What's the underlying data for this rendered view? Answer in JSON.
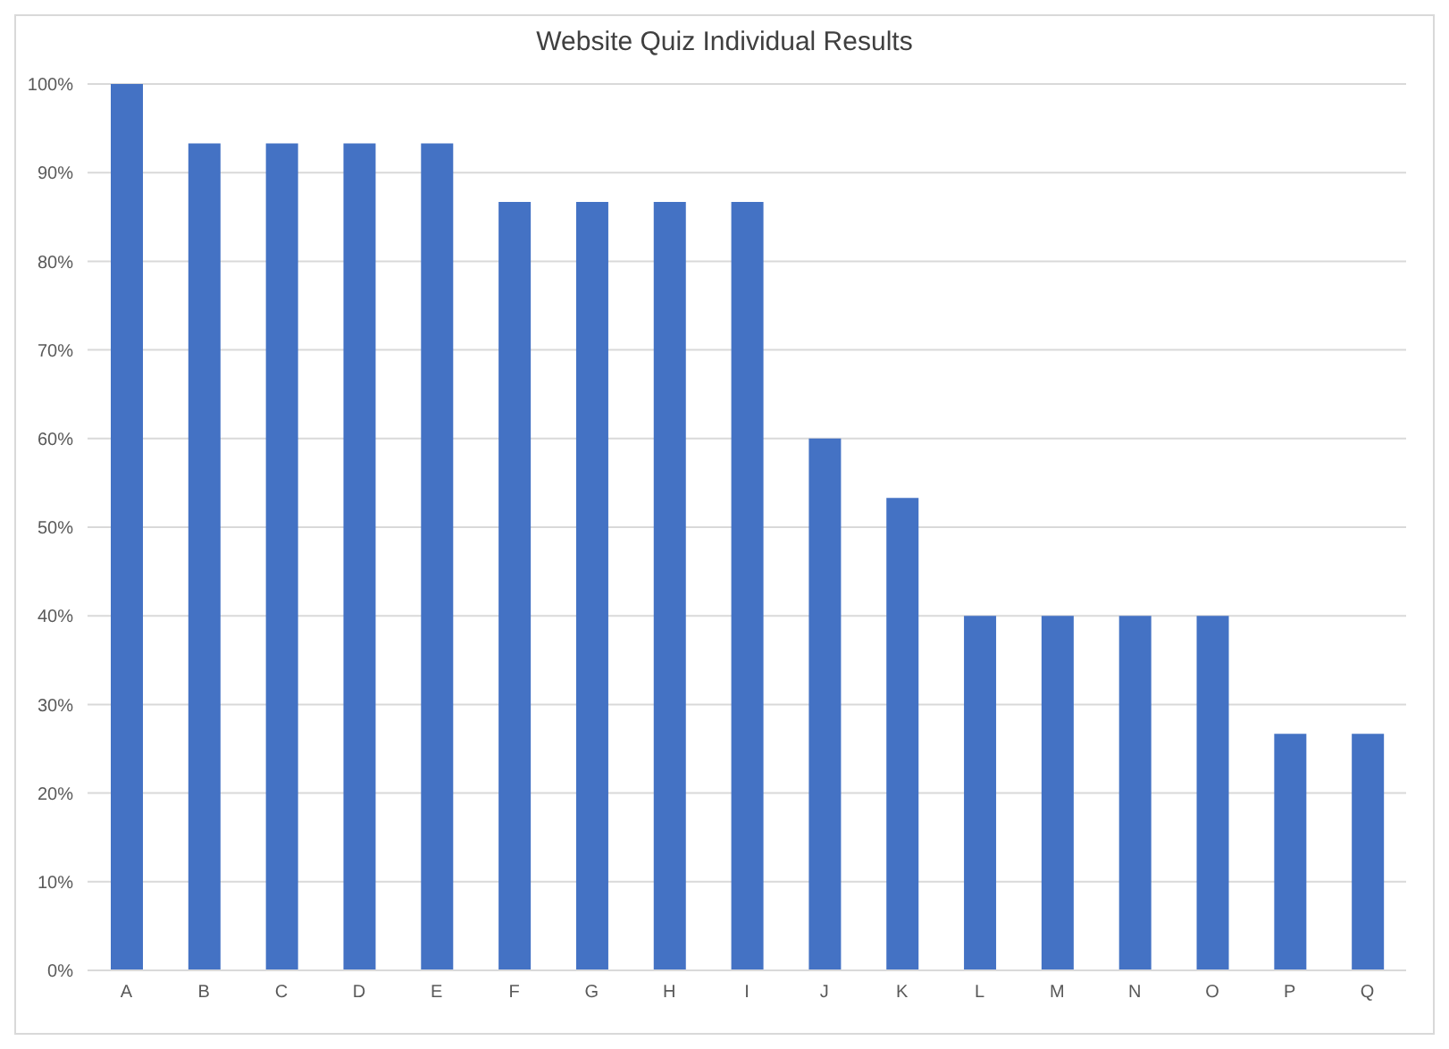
{
  "chart_data": {
    "type": "bar",
    "title": "Website Quiz Individual Results",
    "categories": [
      "A",
      "B",
      "C",
      "D",
      "E",
      "F",
      "G",
      "H",
      "I",
      "J",
      "K",
      "L",
      "M",
      "N",
      "O",
      "P",
      "Q"
    ],
    "values": [
      100,
      93.3,
      93.3,
      93.3,
      93.3,
      86.7,
      86.7,
      86.7,
      86.7,
      60,
      53.3,
      40,
      40,
      40,
      40,
      26.7,
      26.7
    ],
    "color": "#4472c4",
    "ylim": [
      0,
      100
    ],
    "yticks": [
      {
        "value": 0,
        "label": "0%"
      },
      {
        "value": 10,
        "label": "10%"
      },
      {
        "value": 20,
        "label": "20%"
      },
      {
        "value": 30,
        "label": "30%"
      },
      {
        "value": 40,
        "label": "40%"
      },
      {
        "value": 50,
        "label": "50%"
      },
      {
        "value": 60,
        "label": "60%"
      },
      {
        "value": 70,
        "label": "70%"
      },
      {
        "value": 80,
        "label": "80%"
      },
      {
        "value": 90,
        "label": "90%"
      },
      {
        "value": 100,
        "label": "100%"
      }
    ],
    "grid": "y",
    "legend": false
  }
}
